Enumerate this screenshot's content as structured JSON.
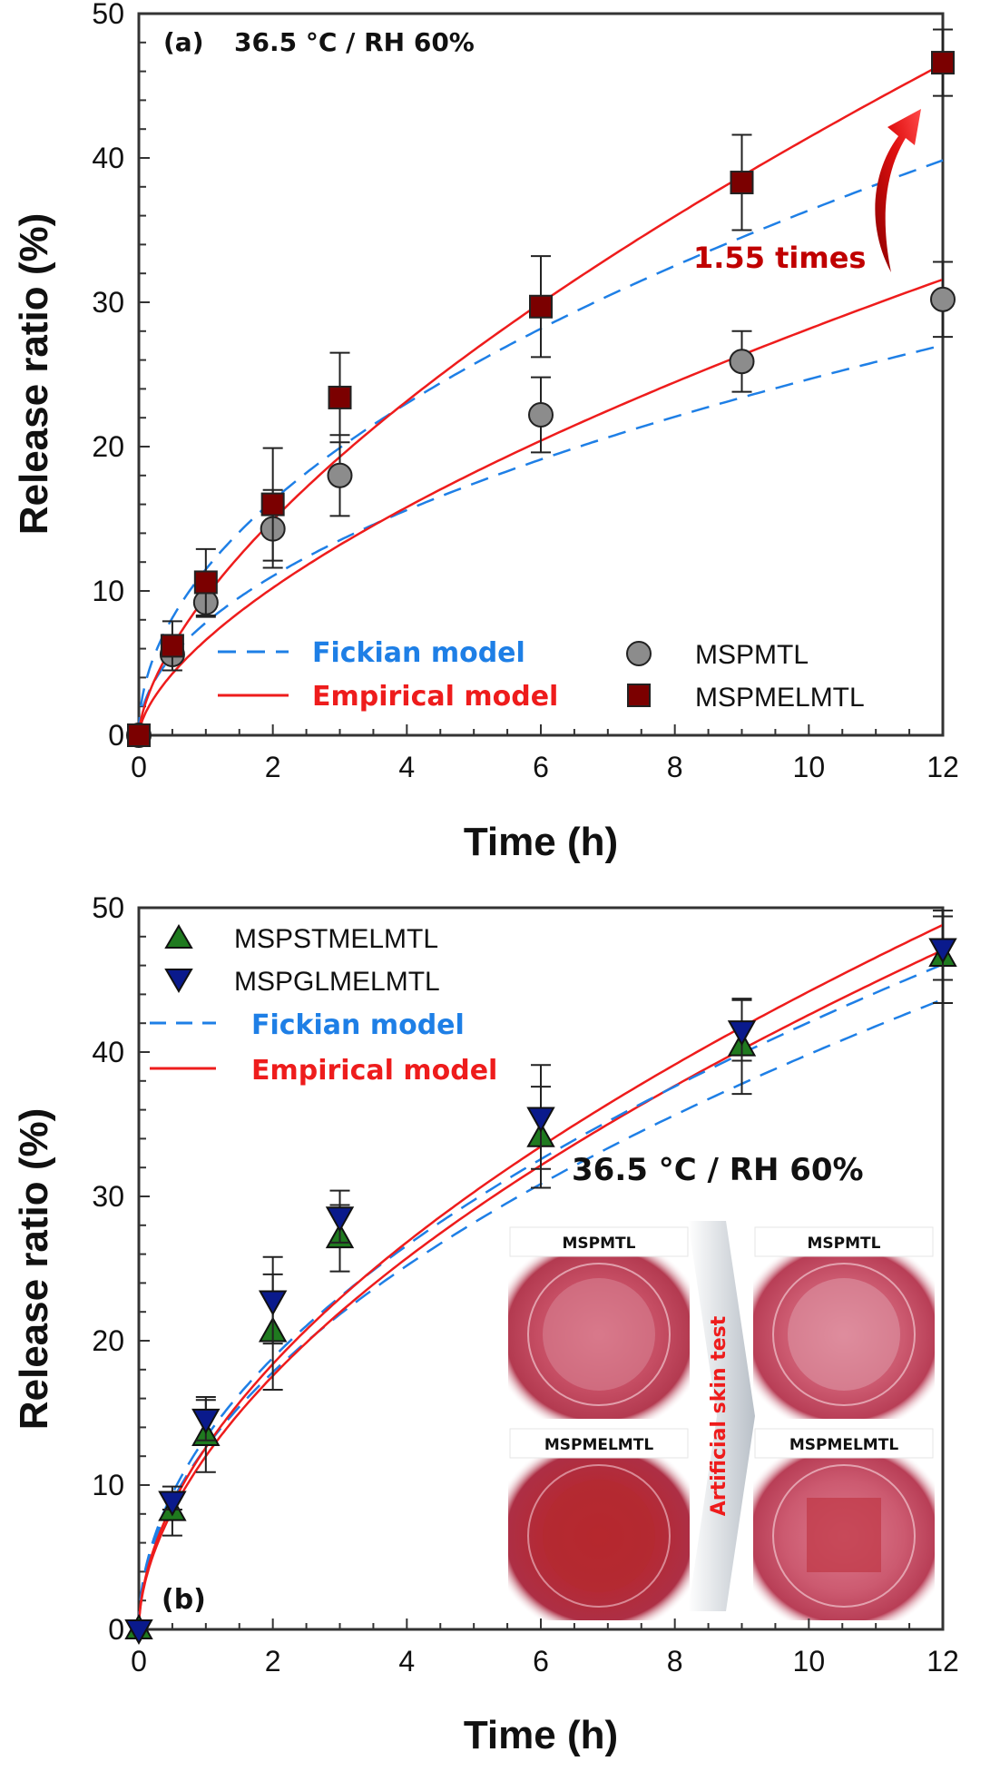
{
  "chart_data": [
    {
      "id": "a",
      "type": "scatter",
      "panel_label": "(a)",
      "condition": "36.5 °C / RH 60%",
      "xlabel": "Time (h)",
      "ylabel": "Release ratio (%)",
      "xlim": [
        0,
        12
      ],
      "ylim": [
        0,
        50
      ],
      "xticks": [
        0,
        2,
        4,
        6,
        8,
        10,
        12
      ],
      "yticks": [
        0,
        10,
        20,
        30,
        40,
        50
      ],
      "grid": false,
      "legend": {
        "placement": "bottom-right"
      },
      "models": [
        {
          "name": "Fickian model",
          "style": "dashed",
          "color": "#1E7FE6"
        },
        {
          "name": "Empirical model",
          "style": "solid",
          "color": "#EE1C1C"
        }
      ],
      "annotation": {
        "text": "1.55 times",
        "color": "#C00000"
      },
      "series": [
        {
          "name": "MSPMTL",
          "marker": "circle",
          "color": "#8C8C8C",
          "x": [
            0,
            0.5,
            1,
            2,
            3,
            6,
            9,
            12
          ],
          "y": [
            0,
            5.6,
            9.2,
            14.3,
            18.0,
            22.2,
            25.9,
            30.2
          ],
          "err": [
            0,
            0.5,
            1.0,
            2.7,
            2.8,
            2.6,
            2.1,
            2.6
          ],
          "fickian": {
            "k": 7.8,
            "n": 0.5
          },
          "empirical": {
            "k": 6.6,
            "n": 0.63
          }
        },
        {
          "name": "MSPMELMTL",
          "marker": "square",
          "color": "#7B0000",
          "x": [
            0,
            0.5,
            1,
            2,
            3,
            6,
            9,
            12
          ],
          "y": [
            0,
            6.2,
            10.6,
            16.0,
            23.4,
            29.7,
            38.3,
            46.6
          ],
          "err": [
            0,
            1.7,
            2.3,
            3.9,
            3.1,
            3.5,
            3.3,
            2.3
          ],
          "fickian": {
            "k": 11.5,
            "n": 0.5
          },
          "empirical": {
            "k": 9.6,
            "n": 0.635
          }
        }
      ]
    },
    {
      "id": "b",
      "type": "scatter",
      "panel_label": "(b)",
      "condition": "36.5 °C / RH 60%",
      "xlabel": "Time (h)",
      "ylabel": "Release ratio (%)",
      "xlim": [
        0,
        12
      ],
      "ylim": [
        0,
        50
      ],
      "xticks": [
        0,
        2,
        4,
        6,
        8,
        10,
        12
      ],
      "yticks": [
        0,
        10,
        20,
        30,
        40,
        50
      ],
      "grid": false,
      "legend": {
        "placement": "top-left"
      },
      "models": [
        {
          "name": "Fickian model",
          "style": "dashed",
          "color": "#1E7FE6"
        },
        {
          "name": "Empirical model",
          "style": "solid",
          "color": "#EE1C1C"
        }
      ],
      "series": [
        {
          "name": "MSPSTMELMTL",
          "marker": "triangle-up",
          "color": "#1F7A1F",
          "x": [
            0,
            0.5,
            1,
            2,
            3,
            6,
            9,
            12
          ],
          "y": [
            0,
            8.2,
            13.4,
            20.6,
            27.1,
            34.1,
            40.4,
            46.6
          ],
          "err": [
            0,
            1.7,
            2.5,
            4.0,
            2.3,
            3.5,
            3.3,
            3.2
          ],
          "fickian": {
            "k": 12.6,
            "n": 0.5
          },
          "empirical": {
            "k": 12.0,
            "n": 0.55
          }
        },
        {
          "name": "MSPGLMELMTL",
          "marker": "triangle-down",
          "color": "#0A1A8C",
          "x": [
            0,
            0.5,
            1,
            2,
            3,
            6,
            9,
            12
          ],
          "y": [
            0,
            8.9,
            14.6,
            22.8,
            28.6,
            35.5,
            41.5,
            47.2
          ],
          "err": [
            0,
            0.6,
            1.5,
            3.0,
            1.8,
            3.6,
            2.1,
            2.2
          ],
          "fickian": {
            "k": 13.3,
            "n": 0.5
          },
          "empirical": {
            "k": 12.6,
            "n": 0.545
          }
        }
      ],
      "inset": {
        "arrow_label": "Artificial skin test",
        "photos": [
          {
            "label": "MSPMTL",
            "stage": "before"
          },
          {
            "label": "MSPMTL",
            "stage": "after"
          },
          {
            "label": "MSPMELMTL",
            "stage": "before"
          },
          {
            "label": "MSPMELMTL",
            "stage": "after"
          }
        ]
      }
    }
  ]
}
